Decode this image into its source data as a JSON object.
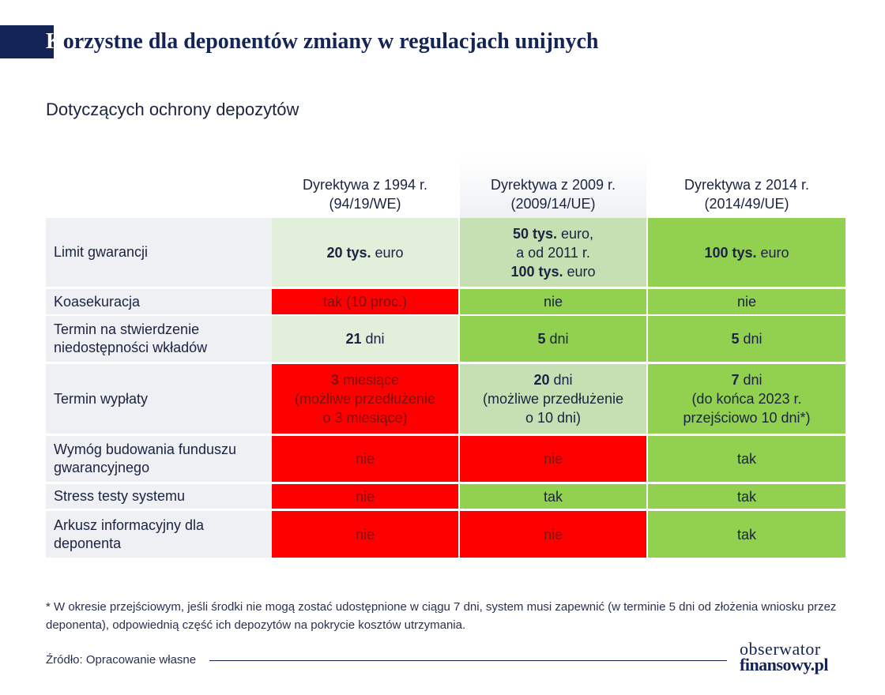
{
  "title": {
    "first_letter": "K",
    "rest": "orzystne dla deponentów zmiany w regulacjach unijnych"
  },
  "subtitle": "Dotyczących ochrony depozytów",
  "columns": [
    {
      "line1": "Dyrektywa z 1994 r.",
      "line2": "(94/19/WE)"
    },
    {
      "line1": "Dyrektywa z 2009 r.",
      "line2": "(2009/14/UE)"
    },
    {
      "line1": "Dyrektywa z 2014 r.",
      "line2": "(2014/49/UE)"
    }
  ],
  "rows": [
    {
      "label": "Limit gwarancji",
      "cells": [
        {
          "lines": [
            {
              "bold": "20 tys.",
              "text": " euro"
            }
          ]
        },
        {
          "lines": [
            {
              "bold": "50 tys.",
              "text": " euro,"
            },
            {
              "bold": "",
              "text": "a od 2011 r."
            },
            {
              "bold": "100 tys.",
              "text": " euro"
            }
          ]
        },
        {
          "lines": [
            {
              "bold": "100 tys.",
              "text": " euro"
            }
          ]
        }
      ]
    },
    {
      "label": "Koasekuracja",
      "cells": [
        {
          "lines": [
            {
              "bold": "",
              "text": "tak (10 proc.)"
            }
          ]
        },
        {
          "lines": [
            {
              "bold": "",
              "text": "nie"
            }
          ]
        },
        {
          "lines": [
            {
              "bold": "",
              "text": "nie"
            }
          ]
        }
      ]
    },
    {
      "label": "Termin na stwierdzenie niedostępności wkładów",
      "cells": [
        {
          "lines": [
            {
              "bold": "21",
              "text": " dni"
            }
          ]
        },
        {
          "lines": [
            {
              "bold": "5",
              "text": " dni"
            }
          ]
        },
        {
          "lines": [
            {
              "bold": "5",
              "text": " dni"
            }
          ]
        }
      ]
    },
    {
      "label": "Termin wypłaty",
      "cells": [
        {
          "lines": [
            {
              "bold": "3",
              "text": " miesiące"
            },
            {
              "bold": "",
              "text": "(możliwe przedłużenie"
            },
            {
              "bold": "",
              "text": "o 3 miesiące)"
            }
          ]
        },
        {
          "lines": [
            {
              "bold": "20",
              "text": " dni"
            },
            {
              "bold": "",
              "text": "(możliwe przedłużenie"
            },
            {
              "bold": "",
              "text": "o 10 dni)"
            }
          ]
        },
        {
          "lines": [
            {
              "bold": "7",
              "text": " dni"
            },
            {
              "bold": "",
              "text": "(do końca 2023 r."
            },
            {
              "bold": "",
              "text": "przejściowo 10 dni*)"
            }
          ]
        }
      ]
    },
    {
      "label": "Wymóg budowania funduszu gwarancyjnego",
      "cells": [
        {
          "lines": [
            {
              "bold": "",
              "text": "nie"
            }
          ]
        },
        {
          "lines": [
            {
              "bold": "",
              "text": "nie"
            }
          ]
        },
        {
          "lines": [
            {
              "bold": "",
              "text": "tak"
            }
          ]
        }
      ]
    },
    {
      "label": "Stress testy systemu",
      "cells": [
        {
          "lines": [
            {
              "bold": "",
              "text": "nie"
            }
          ]
        },
        {
          "lines": [
            {
              "bold": "",
              "text": "tak"
            }
          ]
        },
        {
          "lines": [
            {
              "bold": "",
              "text": "tak"
            }
          ]
        }
      ]
    },
    {
      "label": "Arkusz informacyjny dla deponenta",
      "cells": [
        {
          "lines": [
            {
              "bold": "",
              "text": "nie"
            }
          ]
        },
        {
          "lines": [
            {
              "bold": "",
              "text": "nie"
            }
          ]
        },
        {
          "lines": [
            {
              "bold": "",
              "text": "tak"
            }
          ]
        }
      ]
    }
  ],
  "footnote": "* W okresie przejściowym, jeśli środki nie mogą zostać udostępnione w ciągu 7 dni, system musi zapewnić (w terminie 5 dni od złożenia wniosku przez deponenta), odpowiednią część ich depozytów na pokrycie kosztów utrzymania.",
  "source": "Źródło: Opracowanie własne",
  "logo": {
    "line1": "obserwator",
    "line2": "finansowy.pl"
  },
  "colors": {
    "navy": "#152457",
    "light_green": "#e2efda",
    "mid_green": "#c6e0b4",
    "green": "#92d050",
    "red": "#ff0000"
  }
}
